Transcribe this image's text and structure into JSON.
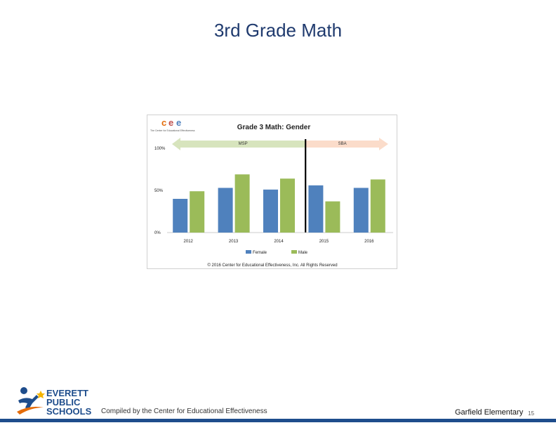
{
  "slide": {
    "title": "3rd Grade Math",
    "footer_left": "Compiled by the Center for Educational Effectiveness",
    "footer_school": "Garfield Elementary",
    "page_number": "15"
  },
  "logo": {
    "line1": "EVERETT",
    "line2": "PUBLIC",
    "line3": "SCHOOLS"
  },
  "cee_logo": {
    "letters": [
      "c",
      "e",
      "e"
    ],
    "tagline": "The Center for Educational Effectiveness"
  },
  "colors": {
    "female": "#4f81bd",
    "male": "#9bbb59",
    "msp_band": "#d7e4bd",
    "sba_band": "#fbdcca",
    "title": "#1f3a6e",
    "footer_bar": "#1e4d8c"
  },
  "chart_data": {
    "type": "bar",
    "title": "Grade 3 Math: Gender",
    "categories": [
      "2012",
      "2013",
      "2014",
      "2015",
      "2016"
    ],
    "series": [
      {
        "name": "Female",
        "values": [
          40,
          53,
          51,
          56,
          53
        ]
      },
      {
        "name": "Male",
        "values": [
          49,
          69,
          64,
          37,
          63
        ]
      }
    ],
    "ylim": [
      0,
      100
    ],
    "yticks": [
      "0%",
      "50%",
      "100%"
    ],
    "bands": [
      {
        "label": "MSP",
        "from": "2012",
        "to": "2014"
      },
      {
        "label": "SBA",
        "from": "2015",
        "to": "2016"
      }
    ],
    "legend_position": "bottom",
    "copyright": "© 2016 Center for Educational Effectiveness, Inc. All Rights Reserved"
  }
}
